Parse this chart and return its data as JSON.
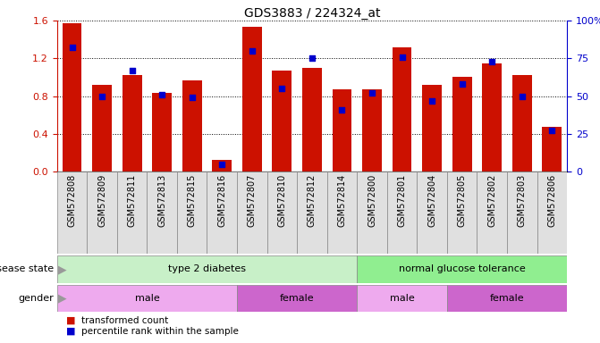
{
  "title": "GDS3883 / 224324_at",
  "samples": [
    "GSM572808",
    "GSM572809",
    "GSM572811",
    "GSM572813",
    "GSM572815",
    "GSM572816",
    "GSM572807",
    "GSM572810",
    "GSM572812",
    "GSM572814",
    "GSM572800",
    "GSM572801",
    "GSM572804",
    "GSM572805",
    "GSM572802",
    "GSM572803",
    "GSM572806"
  ],
  "transformed_count": [
    1.57,
    0.92,
    1.02,
    0.83,
    0.97,
    0.12,
    1.53,
    1.07,
    1.1,
    0.87,
    0.87,
    1.32,
    0.92,
    1.0,
    1.15,
    1.02,
    0.47
  ],
  "percentile_rank": [
    82,
    50,
    67,
    51,
    49,
    5,
    80,
    55,
    75,
    41,
    52,
    76,
    47,
    58,
    73,
    50,
    27
  ],
  "disease_state": [
    {
      "label": "type 2 diabetes",
      "start": 0,
      "end": 10,
      "color": "#c8f0c8"
    },
    {
      "label": "normal glucose tolerance",
      "start": 10,
      "end": 17,
      "color": "#90ee90"
    }
  ],
  "gender": [
    {
      "label": "male",
      "start": 0,
      "end": 6,
      "color": "#eeaaee"
    },
    {
      "label": "female",
      "start": 6,
      "end": 10,
      "color": "#cc66cc"
    },
    {
      "label": "male",
      "start": 10,
      "end": 13,
      "color": "#eeaaee"
    },
    {
      "label": "female",
      "start": 13,
      "end": 17,
      "color": "#cc66cc"
    }
  ],
  "bar_color": "#cc1100",
  "dot_color": "#0000cc",
  "ylim_left": [
    0,
    1.6
  ],
  "ylim_right": [
    0,
    100
  ],
  "yticks_left": [
    0,
    0.4,
    0.8,
    1.2,
    1.6
  ],
  "yticks_right": [
    0,
    25,
    50,
    75,
    100
  ],
  "background_color": "#ffffff",
  "grid_color": "#000000",
  "xtick_bg": "#e0e0e0"
}
